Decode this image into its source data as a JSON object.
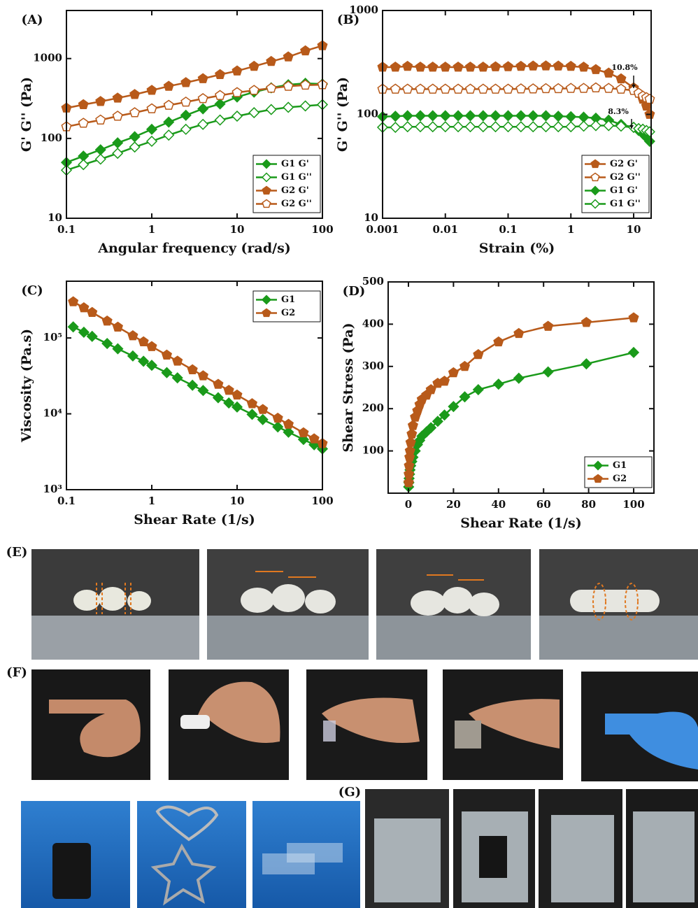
{
  "chart_data": [
    {
      "type": "line",
      "title": "(A)",
      "xlabel": "Angular frequency (rad/s)",
      "ylabel": "G' G'' (Pa)",
      "xscale": "log",
      "yscale": "log",
      "xlim": [
        0.1,
        100
      ],
      "ylim": [
        10,
        4000
      ],
      "xticks": [
        0.1,
        1,
        10,
        100
      ],
      "yticks": [
        10,
        100,
        1000
      ],
      "legend": "lower right",
      "x": [
        0.1,
        0.158,
        0.251,
        0.398,
        0.631,
        1,
        1.58,
        2.51,
        3.98,
        6.31,
        10,
        15.8,
        25.1,
        39.8,
        63.1,
        100
      ],
      "series": [
        {
          "name": "G1 G'",
          "color": "#1a9a1a",
          "marker": "diamond",
          "open": false,
          "values": [
            50,
            60,
            72,
            88,
            105,
            130,
            160,
            195,
            235,
            270,
            330,
            380,
            430,
            470,
            490,
            480
          ]
        },
        {
          "name": "G1 G''",
          "color": "#1a9a1a",
          "marker": "diamond",
          "open": true,
          "values": [
            40,
            47,
            55,
            65,
            78,
            92,
            110,
            130,
            150,
            170,
            190,
            210,
            230,
            245,
            255,
            265
          ]
        },
        {
          "name": "G2 G'",
          "color": "#b85a1a",
          "marker": "pentagon",
          "open": false,
          "values": [
            240,
            265,
            290,
            320,
            355,
            400,
            450,
            500,
            560,
            630,
            700,
            800,
            920,
            1050,
            1250,
            1450
          ]
        },
        {
          "name": "G2 G''",
          "color": "#b85a1a",
          "marker": "pentagon",
          "open": true,
          "values": [
            140,
            155,
            170,
            190,
            210,
            235,
            260,
            285,
            315,
            345,
            375,
            400,
            425,
            450,
            465,
            470
          ]
        }
      ]
    },
    {
      "type": "line",
      "title": "(B)",
      "xlabel": "Strain (%)",
      "ylabel": "G' G'' (Pa)",
      "xscale": "log",
      "yscale": "log",
      "xlim": [
        0.001,
        19
      ],
      "ylim": [
        10,
        1000
      ],
      "xticks": [
        0.001,
        0.01,
        0.1,
        1,
        10
      ],
      "yticks": [
        10,
        100,
        1000
      ],
      "legend": "lower right",
      "annotations": [
        "10.8%",
        "8.3%"
      ],
      "x": [
        0.001,
        0.0016,
        0.0025,
        0.004,
        0.0063,
        0.01,
        0.016,
        0.025,
        0.04,
        0.063,
        0.1,
        0.16,
        0.25,
        0.4,
        0.63,
        1,
        1.6,
        2.5,
        4,
        6.3,
        10,
        12,
        14,
        16,
        18
      ],
      "series": [
        {
          "name": "G2 G'",
          "color": "#b85a1a",
          "marker": "pentagon",
          "open": false,
          "values": [
            285,
            285,
            290,
            285,
            285,
            285,
            285,
            285,
            285,
            287,
            288,
            290,
            292,
            293,
            292,
            290,
            285,
            270,
            250,
            220,
            180,
            160,
            140,
            120,
            100
          ]
        },
        {
          "name": "G2 G''",
          "color": "#b85a1a",
          "marker": "pentagon",
          "open": true,
          "values": [
            175,
            175,
            175,
            175,
            175,
            175,
            175,
            175,
            175,
            175,
            175,
            176,
            176,
            177,
            177,
            178,
            178,
            180,
            178,
            175,
            170,
            160,
            150,
            145,
            140
          ]
        },
        {
          "name": "G1 G'",
          "color": "#1a9a1a",
          "marker": "diamond",
          "open": false,
          "values": [
            95,
            96,
            97,
            97,
            97,
            97,
            97,
            97,
            97,
            97,
            97,
            97,
            97,
            97,
            96,
            95,
            94,
            92,
            88,
            80,
            75,
            70,
            65,
            60,
            55
          ]
        },
        {
          "name": "G1 G''",
          "color": "#1a9a1a",
          "marker": "diamond",
          "open": true,
          "values": [
            75,
            75,
            76,
            76,
            76,
            76,
            76,
            76,
            76,
            76,
            76,
            76,
            76,
            76,
            76,
            76,
            77,
            78,
            78,
            77,
            75,
            73,
            72,
            70,
            68
          ]
        }
      ]
    },
    {
      "type": "line",
      "title": "(C)",
      "xlabel": "Shear Rate (1/s)",
      "ylabel": "Viscosity (Pa.s)",
      "xscale": "log",
      "yscale": "log",
      "xlim": [
        0.1,
        100
      ],
      "ylim": [
        1000,
        560000
      ],
      "xticks": [
        0.1,
        1,
        10,
        100
      ],
      "yticks": [
        {
          "value": 1000,
          "label": "10³"
        },
        {
          "value": 10000,
          "label": "10⁴"
        },
        {
          "value": 100000,
          "label": "10⁵"
        }
      ],
      "legend": "upper right",
      "x": [
        0.12,
        0.16,
        0.2,
        0.3,
        0.4,
        0.6,
        0.8,
        1,
        1.5,
        2,
        3,
        4,
        6,
        8,
        10,
        15,
        20,
        30,
        40,
        60,
        80,
        100
      ],
      "series": [
        {
          "name": "G1",
          "color": "#1a9a1a",
          "marker": "diamond",
          "open": false,
          "values": [
            140000,
            119000,
            105000,
            84500,
            72000,
            57900,
            49300,
            43600,
            34900,
            29800,
            23800,
            20300,
            16300,
            13900,
            12300,
            9840,
            8400,
            6720,
            5730,
            4590,
            3910,
            3450
          ]
        },
        {
          "name": "G2",
          "color": "#b85a1a",
          "marker": "pentagon",
          "open": false,
          "values": [
            300000,
            250000,
            217000,
            167000,
            139000,
            107000,
            89000,
            77000,
            59500,
            49500,
            38100,
            31700,
            24500,
            20400,
            17700,
            13600,
            11400,
            8750,
            7280,
            5620,
            4680,
            4050
          ]
        }
      ]
    },
    {
      "type": "line",
      "title": "(D)",
      "xlabel": "Shear Rate (1/s)",
      "ylabel": "Shear Stress (Pa)",
      "xscale": "linear",
      "yscale": "linear",
      "xlim": [
        -9,
        109
      ],
      "ylim": [
        0,
        500
      ],
      "xticks": [
        0,
        20,
        40,
        60,
        80,
        100
      ],
      "yticks": [
        100,
        200,
        300,
        400,
        500
      ],
      "legend": "lower right",
      "x": [
        0.1,
        0.2,
        0.3,
        0.5,
        0.7,
        1,
        1.5,
        2,
        3,
        4,
        5,
        6,
        8,
        10,
        13,
        16,
        20,
        25,
        31,
        40,
        49,
        62,
        79,
        100
      ],
      "series": [
        {
          "name": "G1",
          "color": "#1a9a1a",
          "marker": "diamond",
          "open": false,
          "values": [
            15,
            25,
            35,
            45,
            55,
            65,
            75,
            85,
            100,
            115,
            125,
            135,
            145,
            155,
            170,
            185,
            205,
            228,
            245,
            258,
            272,
            287,
            306,
            333
          ]
        },
        {
          "name": "G2",
          "color": "#b85a1a",
          "marker": "pentagon",
          "open": false,
          "values": [
            25,
            45,
            65,
            85,
            100,
            120,
            140,
            160,
            180,
            195,
            210,
            222,
            232,
            245,
            260,
            265,
            285,
            300,
            328,
            358,
            378,
            395,
            404,
            415
          ]
        }
      ]
    }
  ],
  "panels": {
    "e": "(E)",
    "f": "(F)",
    "g": "(G)"
  }
}
